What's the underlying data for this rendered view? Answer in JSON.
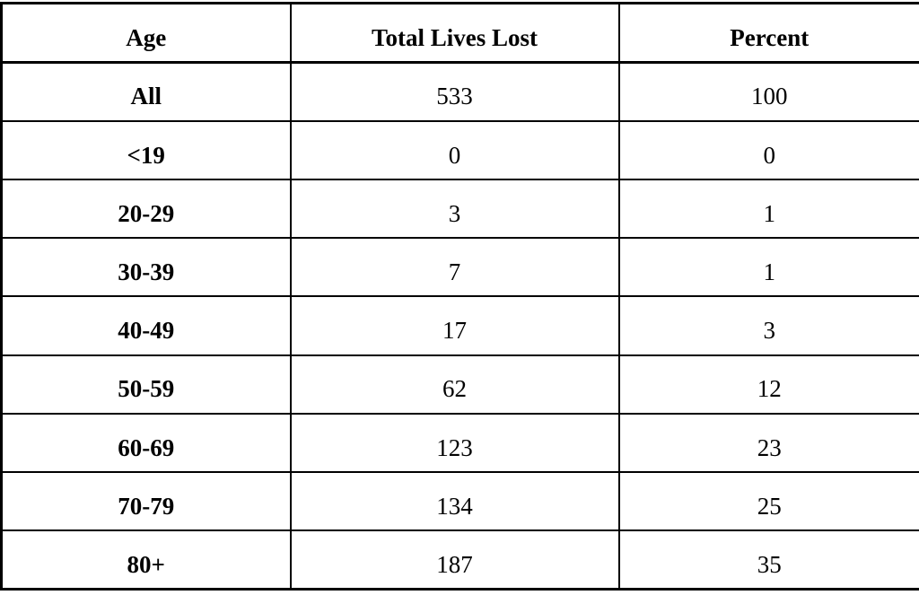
{
  "chart_data": {
    "type": "table",
    "columns": [
      "Age",
      "Total Lives Lost",
      "Percent"
    ],
    "rows": [
      [
        "All",
        "533",
        "100"
      ],
      [
        "<19",
        "0",
        "0"
      ],
      [
        "20-29",
        "3",
        "1"
      ],
      [
        "30-39",
        "7",
        "1"
      ],
      [
        "40-49",
        "17",
        "3"
      ],
      [
        "50-59",
        "62",
        "12"
      ],
      [
        "60-69",
        "123",
        "23"
      ],
      [
        "70-79",
        "134",
        "25"
      ],
      [
        "80+",
        "187",
        "35"
      ]
    ],
    "layout": {
      "grid": "full-borders",
      "header_bold": true,
      "age_column_bold": true
    }
  },
  "colors": {
    "border": "#000000",
    "text": "#000000",
    "background": "#ffffff"
  }
}
